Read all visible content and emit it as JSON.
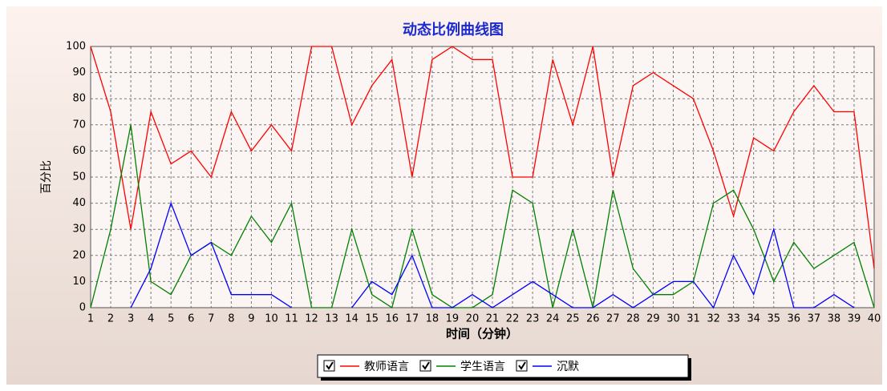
{
  "chart_data": {
    "type": "line",
    "title": "动态比例曲线图",
    "y_label": "百分比",
    "x_label": "时间（分钟）",
    "x": [
      1,
      2,
      3,
      4,
      5,
      6,
      7,
      8,
      9,
      10,
      11,
      12,
      13,
      14,
      15,
      16,
      17,
      18,
      19,
      20,
      21,
      22,
      23,
      24,
      25,
      26,
      27,
      28,
      29,
      30,
      31,
      32,
      33,
      34,
      35,
      36,
      37,
      38,
      39,
      40
    ],
    "xlim": [
      1,
      40
    ],
    "xticks": [
      1,
      2,
      3,
      4,
      5,
      6,
      7,
      8,
      9,
      10,
      11,
      12,
      13,
      14,
      15,
      16,
      17,
      18,
      19,
      20,
      21,
      22,
      23,
      24,
      25,
      26,
      27,
      28,
      29,
      30,
      31,
      32,
      33,
      34,
      35,
      36,
      37,
      38,
      39,
      40
    ],
    "ylim": [
      0,
      100
    ],
    "yticks": [
      0,
      10,
      20,
      30,
      40,
      50,
      60,
      70,
      80,
      90,
      100
    ],
    "grid": true,
    "legend": "bottom",
    "series": [
      {
        "name": "教师语言",
        "color": "#ff0000",
        "values": [
          100,
          75,
          30,
          75,
          55,
          60,
          50,
          75,
          60,
          70,
          60,
          100,
          100,
          70,
          85,
          95,
          50,
          95,
          100,
          95,
          95,
          50,
          50,
          95,
          70,
          100,
          50,
          85,
          90,
          85,
          80,
          60,
          35,
          65,
          60,
          75,
          85,
          75,
          75,
          15
        ]
      },
      {
        "name": "学生语言",
        "color": "#008000",
        "values": [
          0,
          30,
          70,
          10,
          5,
          20,
          25,
          20,
          35,
          25,
          40,
          0,
          0,
          30,
          5,
          0,
          30,
          5,
          0,
          0,
          5,
          45,
          40,
          0,
          30,
          0,
          45,
          15,
          5,
          5,
          10,
          40,
          45,
          30,
          10,
          25,
          15,
          20,
          25,
          0
        ]
      },
      {
        "name": "沉默",
        "color": "#0000ff",
        "values": [
          null,
          null,
          0,
          15,
          40,
          20,
          25,
          5,
          5,
          5,
          0,
          null,
          null,
          0,
          10,
          5,
          20,
          0,
          0,
          5,
          0,
          5,
          10,
          5,
          0,
          0,
          5,
          0,
          5,
          10,
          10,
          0,
          20,
          5,
          30,
          0,
          0,
          5,
          0,
          null
        ]
      }
    ]
  }
}
